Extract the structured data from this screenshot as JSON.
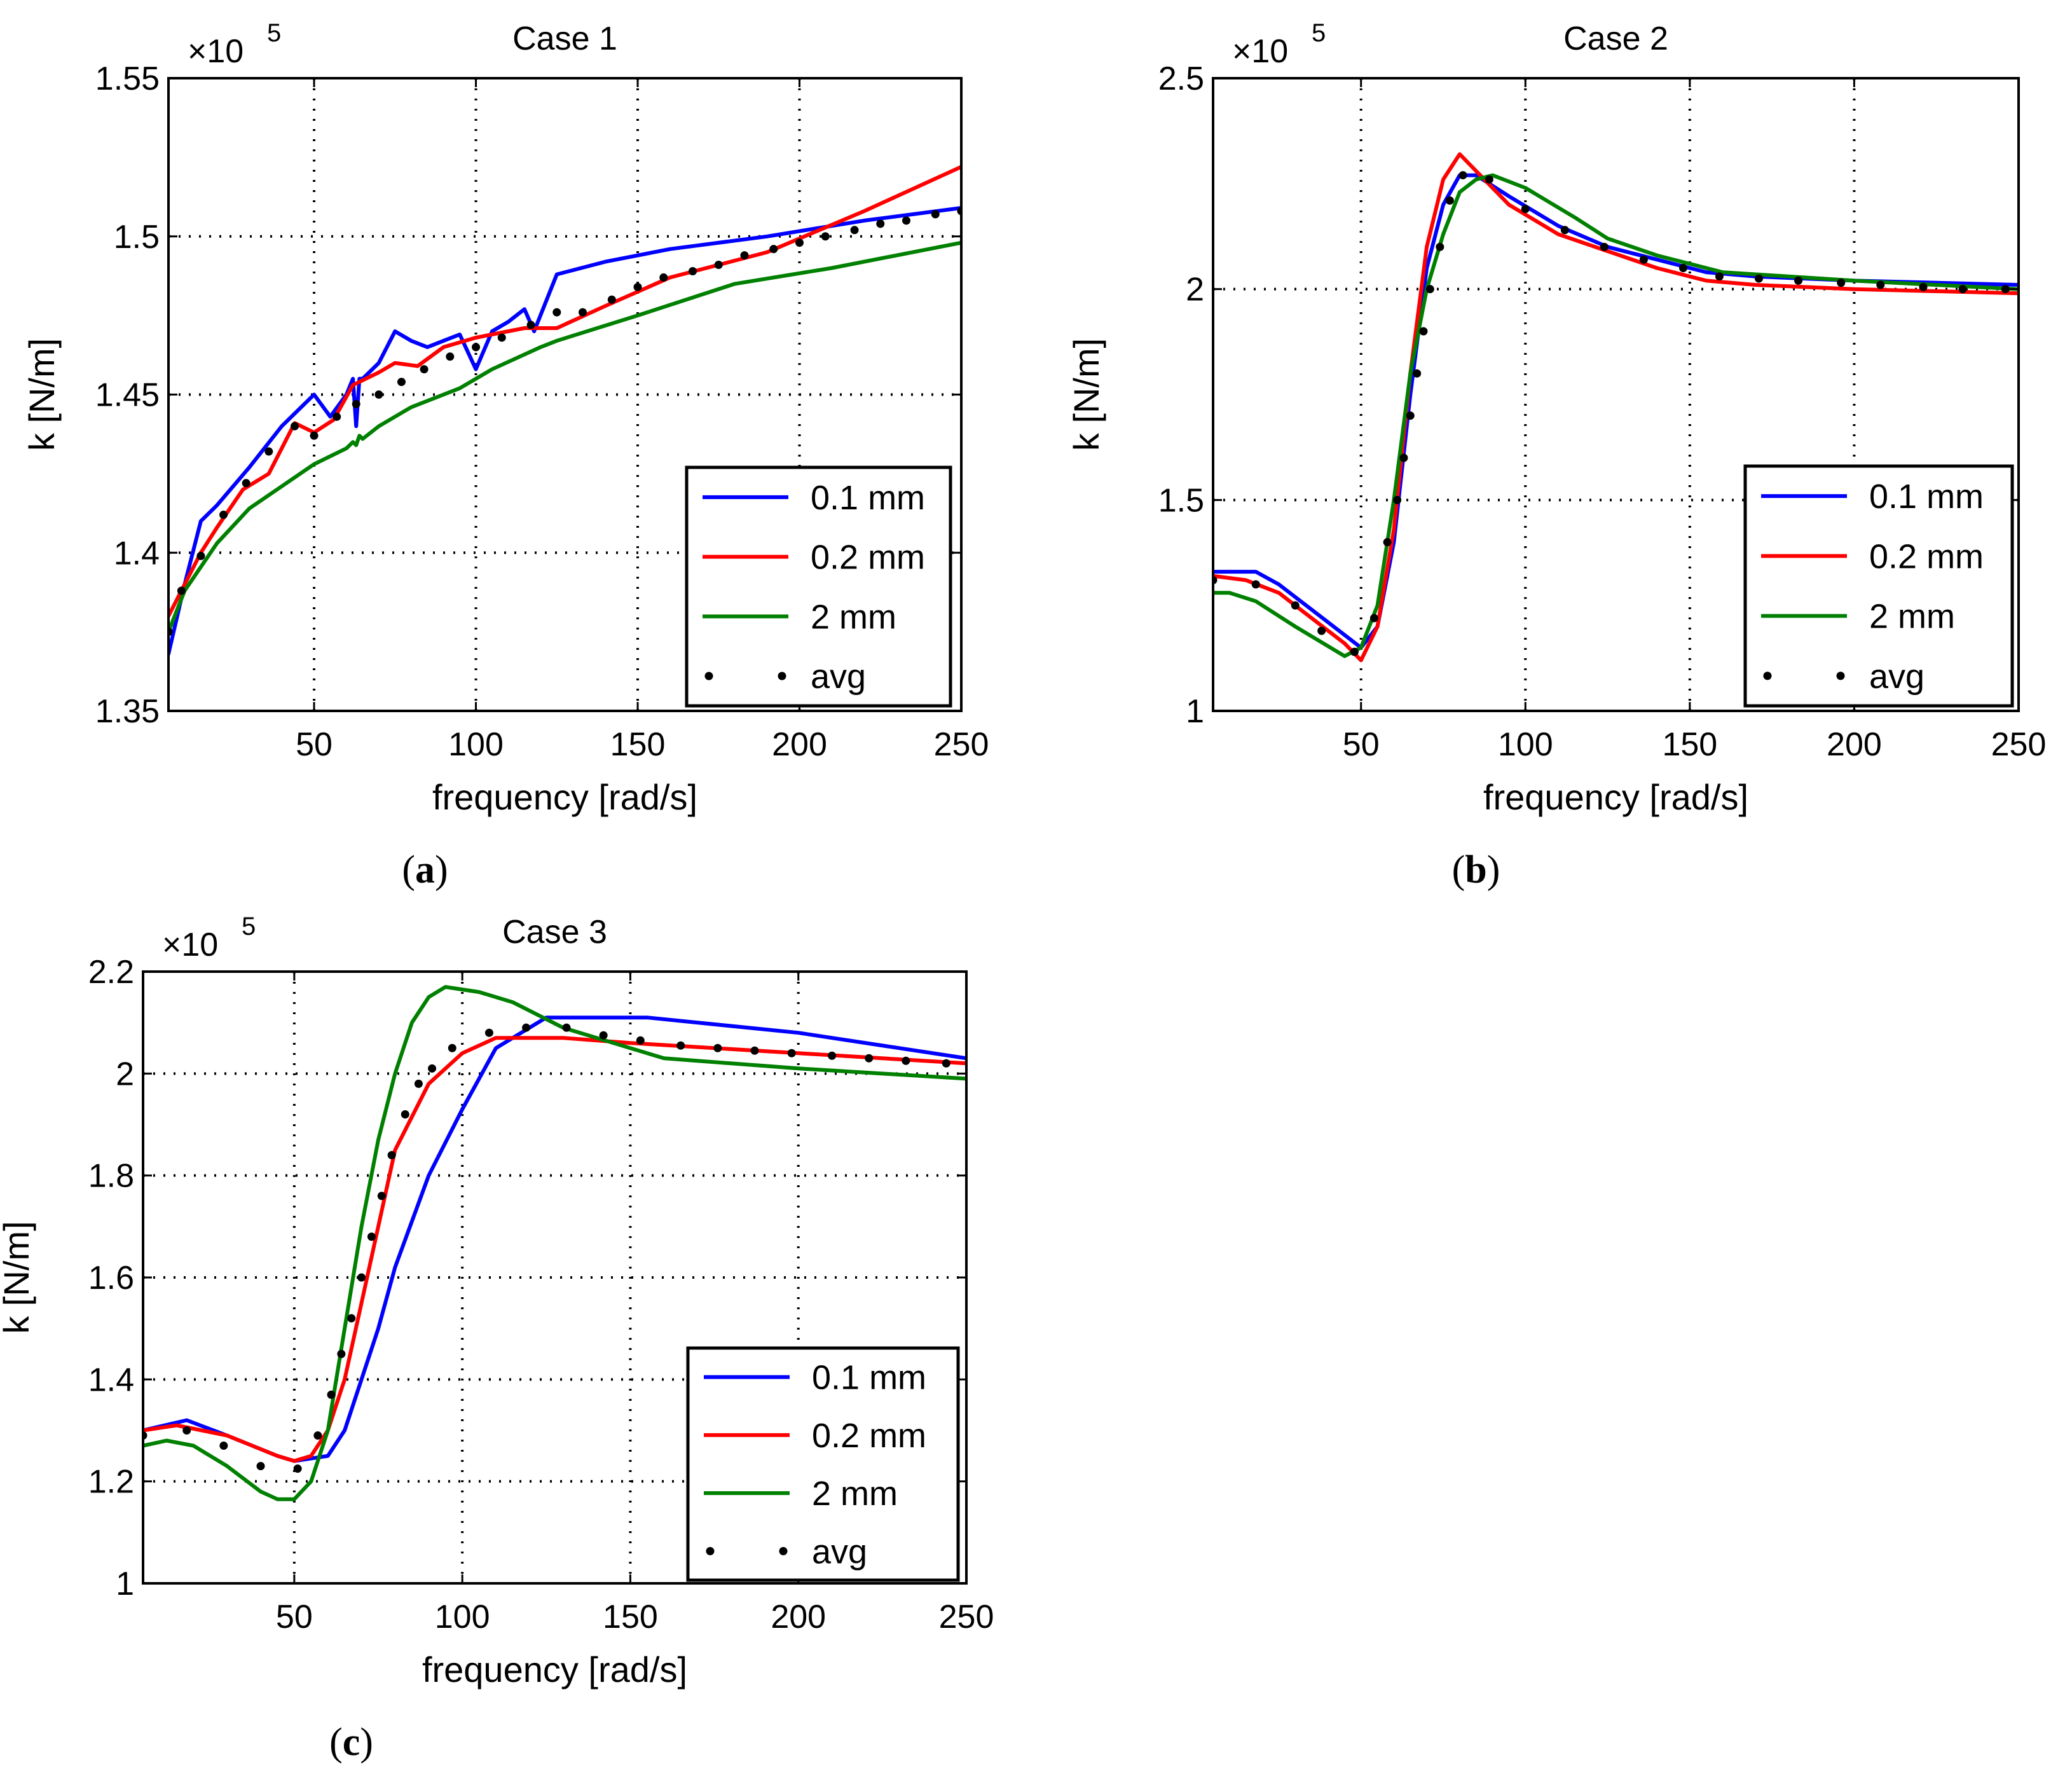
{
  "chart_data": [
    {
      "type": "line",
      "title": "Case 1",
      "panel_label": "a",
      "xlabel": "frequency [rad/s]",
      "ylabel": "k [N/m]",
      "exponent": "5",
      "xlim": [
        5,
        250
      ],
      "ylim": [
        1.35,
        1.55
      ],
      "xticks": [
        50,
        100,
        150,
        200,
        250
      ],
      "xtick_labels": [
        "50",
        "100",
        "150",
        "200",
        "250"
      ],
      "yticks": [
        1.35,
        1.4,
        1.45,
        1.5,
        1.55
      ],
      "ytick_labels": [
        "1.35",
        "1.4",
        "1.45",
        "1.5",
        "1.55"
      ],
      "grid": true,
      "legend_position": "lower-right",
      "series": [
        {
          "name": "0.1 mm",
          "color": "#0000ff",
          "style": "line",
          "x": [
            5,
            10,
            15,
            20,
            30,
            40,
            50,
            55,
            60,
            62,
            63,
            64,
            65,
            70,
            75,
            80,
            85,
            90,
            95,
            100,
            105,
            110,
            115,
            118,
            125,
            140,
            160,
            190,
            220,
            250
          ],
          "y": [
            1.368,
            1.39,
            1.41,
            1.415,
            1.427,
            1.44,
            1.45,
            1.443,
            1.45,
            1.455,
            1.44,
            1.455,
            1.455,
            1.46,
            1.47,
            1.467,
            1.465,
            1.467,
            1.469,
            1.458,
            1.47,
            1.473,
            1.477,
            1.47,
            1.488,
            1.492,
            1.496,
            1.5,
            1.505,
            1.509
          ]
        },
        {
          "name": "0.2 mm",
          "color": "#ff0000",
          "style": "line",
          "x": [
            5,
            10,
            15,
            20,
            28,
            36,
            44,
            50,
            56,
            62,
            66,
            70,
            75,
            82,
            90,
            100,
            110,
            115,
            125,
            140,
            160,
            190,
            220,
            250
          ],
          "y": [
            1.38,
            1.39,
            1.4,
            1.408,
            1.42,
            1.425,
            1.441,
            1.438,
            1.442,
            1.453,
            1.455,
            1.457,
            1.46,
            1.459,
            1.465,
            1.468,
            1.47,
            1.471,
            1.471,
            1.478,
            1.487,
            1.495,
            1.508,
            1.522
          ]
        },
        {
          "name": "2 mm",
          "color": "#008000",
          "style": "line",
          "x": [
            5,
            10,
            20,
            30,
            40,
            50,
            60,
            62,
            63,
            64,
            65,
            70,
            80,
            95,
            105,
            120,
            125,
            150,
            180,
            210,
            250
          ],
          "y": [
            1.375,
            1.388,
            1.403,
            1.414,
            1.421,
            1.428,
            1.433,
            1.435,
            1.434,
            1.437,
            1.436,
            1.44,
            1.446,
            1.452,
            1.458,
            1.465,
            1.467,
            1.475,
            1.485,
            1.49,
            1.498
          ]
        },
        {
          "name": "avg",
          "color": "#000000",
          "style": "dots",
          "x": [
            5,
            9,
            15,
            22,
            29,
            36,
            44,
            50,
            57,
            63,
            70,
            77,
            84,
            92,
            100,
            108,
            117,
            125,
            133,
            142,
            150,
            158,
            167,
            175,
            183,
            192,
            200,
            208,
            217,
            225,
            233,
            242,
            250
          ],
          "y": [
            1.375,
            1.388,
            1.399,
            1.412,
            1.422,
            1.432,
            1.44,
            1.437,
            1.443,
            1.447,
            1.45,
            1.454,
            1.458,
            1.462,
            1.465,
            1.468,
            1.472,
            1.476,
            1.476,
            1.48,
            1.484,
            1.487,
            1.489,
            1.491,
            1.494,
            1.496,
            1.498,
            1.5,
            1.502,
            1.504,
            1.505,
            1.507,
            1.508
          ]
        }
      ]
    },
    {
      "type": "line",
      "title": "Case 2",
      "panel_label": "b",
      "xlabel": "frequency [rad/s]",
      "ylabel": "k [N/m]",
      "exponent": "5",
      "xlim": [
        5,
        250
      ],
      "ylim": [
        1.0,
        2.5
      ],
      "xticks": [
        50,
        100,
        150,
        200,
        250
      ],
      "xtick_labels": [
        "50",
        "100",
        "150",
        "200",
        "250"
      ],
      "yticks": [
        1.0,
        1.5,
        2.0,
        2.5
      ],
      "ytick_labels": [
        "1",
        "1.5",
        "2",
        "2.5"
      ],
      "grid": true,
      "legend_position": "lower-right",
      "series": [
        {
          "name": "0.1 mm",
          "color": "#0000ff",
          "style": "line",
          "x": [
            5,
            18,
            25,
            35,
            45,
            50,
            55,
            60,
            65,
            70,
            75,
            80,
            85,
            95,
            110,
            125,
            140,
            155,
            170,
            200,
            250
          ],
          "y": [
            1.33,
            1.33,
            1.3,
            1.24,
            1.18,
            1.15,
            1.2,
            1.4,
            1.75,
            2.05,
            2.2,
            2.27,
            2.27,
            2.22,
            2.15,
            2.1,
            2.07,
            2.04,
            2.03,
            2.02,
            2.01
          ]
        },
        {
          "name": "0.2 mm",
          "color": "#ff0000",
          "style": "line",
          "x": [
            5,
            15,
            25,
            35,
            45,
            50,
            55,
            60,
            65,
            70,
            75,
            80,
            85,
            95,
            110,
            125,
            140,
            155,
            170,
            200,
            250
          ],
          "y": [
            1.32,
            1.31,
            1.28,
            1.22,
            1.16,
            1.12,
            1.2,
            1.43,
            1.8,
            2.1,
            2.26,
            2.32,
            2.28,
            2.2,
            2.13,
            2.09,
            2.05,
            2.02,
            2.01,
            2.0,
            1.99
          ]
        },
        {
          "name": "2 mm",
          "color": "#008000",
          "style": "line",
          "x": [
            5,
            10,
            18,
            30,
            45,
            50,
            55,
            60,
            65,
            70,
            75,
            80,
            85,
            90,
            100,
            115,
            125,
            140,
            160,
            200,
            250
          ],
          "y": [
            1.28,
            1.28,
            1.26,
            1.2,
            1.13,
            1.15,
            1.25,
            1.5,
            1.8,
            2.0,
            2.13,
            2.23,
            2.26,
            2.27,
            2.24,
            2.17,
            2.12,
            2.08,
            2.04,
            2.02,
            2.0
          ]
        },
        {
          "name": "avg",
          "color": "#000000",
          "style": "dots",
          "x": [
            5,
            18,
            30,
            38,
            48,
            54,
            58,
            61,
            63,
            65,
            67,
            69,
            71,
            74,
            77,
            81,
            89,
            100,
            112,
            124,
            136,
            148,
            159,
            171,
            183,
            196,
            208,
            221,
            233,
            246
          ],
          "y": [
            1.31,
            1.3,
            1.25,
            1.19,
            1.14,
            1.22,
            1.4,
            1.5,
            1.6,
            1.7,
            1.8,
            1.9,
            2.0,
            2.1,
            2.21,
            2.27,
            2.26,
            2.19,
            2.14,
            2.1,
            2.07,
            2.05,
            2.03,
            2.025,
            2.02,
            2.015,
            2.01,
            2.005,
            2.0,
            2.0
          ]
        }
      ]
    },
    {
      "type": "line",
      "title": "Case 3",
      "panel_label": "c",
      "xlabel": "frequency [rad/s]",
      "ylabel": "k [N/m]",
      "exponent": "5",
      "xlim": [
        5,
        250
      ],
      "ylim": [
        1.0,
        2.2
      ],
      "xticks": [
        50,
        100,
        150,
        200,
        250
      ],
      "xtick_labels": [
        "50",
        "100",
        "150",
        "200",
        "250"
      ],
      "yticks": [
        1.0,
        1.2,
        1.4,
        1.6,
        1.8,
        2.0,
        2.2
      ],
      "ytick_labels": [
        "1",
        "1.2",
        "1.4",
        "1.6",
        "1.8",
        "2",
        "2.2"
      ],
      "grid": true,
      "legend_position": "lower-right",
      "series": [
        {
          "name": "0.1 mm",
          "color": "#0000ff",
          "style": "line",
          "x": [
            5,
            18,
            30,
            45,
            50,
            60,
            65,
            70,
            75,
            80,
            90,
            100,
            110,
            120,
            125,
            155,
            200,
            250
          ],
          "y": [
            1.3,
            1.32,
            1.29,
            1.25,
            1.24,
            1.25,
            1.3,
            1.4,
            1.5,
            1.62,
            1.8,
            1.93,
            2.05,
            2.09,
            2.11,
            2.11,
            2.08,
            2.03
          ]
        },
        {
          "name": "0.2 mm",
          "color": "#ff0000",
          "style": "line",
          "x": [
            5,
            15,
            30,
            45,
            50,
            55,
            60,
            65,
            70,
            75,
            80,
            90,
            100,
            110,
            120,
            130,
            150,
            200,
            250
          ],
          "y": [
            1.3,
            1.31,
            1.29,
            1.25,
            1.24,
            1.25,
            1.3,
            1.4,
            1.55,
            1.7,
            1.85,
            1.98,
            2.04,
            2.07,
            2.07,
            2.07,
            2.06,
            2.04,
            2.02
          ]
        },
        {
          "name": "2 mm",
          "color": "#008000",
          "style": "line",
          "x": [
            5,
            12,
            20,
            30,
            40,
            45,
            50,
            55,
            60,
            65,
            70,
            75,
            80,
            85,
            90,
            95,
            105,
            115,
            130,
            160,
            200,
            250
          ],
          "y": [
            1.27,
            1.28,
            1.27,
            1.23,
            1.18,
            1.165,
            1.165,
            1.2,
            1.3,
            1.5,
            1.7,
            1.87,
            2.0,
            2.1,
            2.15,
            2.17,
            2.16,
            2.14,
            2.09,
            2.03,
            2.01,
            1.99
          ]
        },
        {
          "name": "avg",
          "color": "#000000",
          "style": "dots",
          "x": [
            5,
            18,
            29,
            40,
            51,
            57,
            61,
            64,
            67,
            70,
            73,
            76,
            79,
            83,
            87,
            91,
            97,
            108,
            119,
            131,
            142,
            153,
            165,
            176,
            187,
            198,
            210,
            221,
            232,
            244
          ],
          "y": [
            1.29,
            1.3,
            1.27,
            1.23,
            1.225,
            1.29,
            1.37,
            1.45,
            1.52,
            1.6,
            1.68,
            1.76,
            1.84,
            1.92,
            1.98,
            2.01,
            2.05,
            2.08,
            2.09,
            2.09,
            2.075,
            2.065,
            2.055,
            2.05,
            2.045,
            2.04,
            2.035,
            2.03,
            2.025,
            2.02
          ]
        }
      ]
    }
  ]
}
